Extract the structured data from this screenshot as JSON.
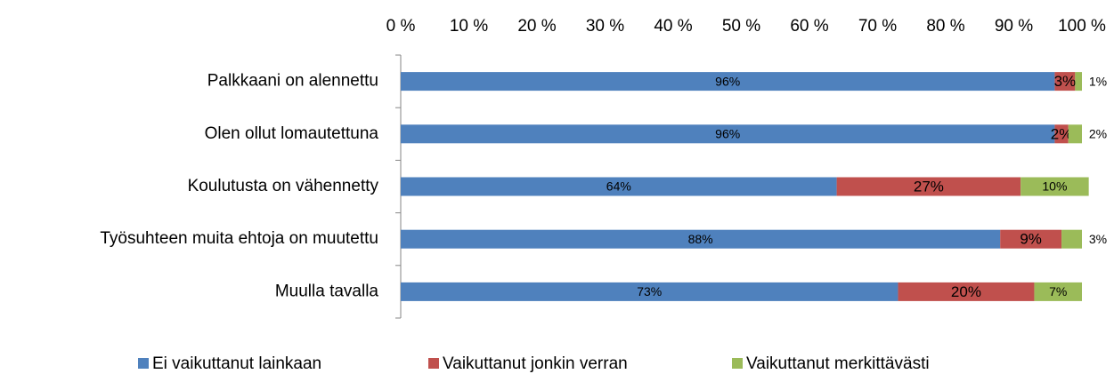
{
  "chart_data": {
    "type": "stacked_bar_horizontal",
    "categories": [
      "Palkkaani on alennettu",
      "Olen ollut lomautettuna",
      "Koulutusta on vähennetty",
      "Työsuhteen muita ehtoja on muutettu",
      "Muulla tavalla"
    ],
    "series": [
      {
        "name": "Ei vaikuttanut lainkaan",
        "color": "#4f81bd",
        "values": [
          96,
          96,
          64,
          88,
          73
        ],
        "value_labels": [
          "96%",
          "96%",
          "64%",
          "88%",
          "73%"
        ]
      },
      {
        "name": "Vaikuttanut jonkin verran",
        "color": "#c0504d",
        "values": [
          3,
          2,
          27,
          9,
          20
        ],
        "value_labels": [
          "3%",
          "2%",
          "27%",
          "9%",
          "20%"
        ]
      },
      {
        "name": "Vaikuttanut merkittävästi",
        "color": "#9bbb59",
        "values": [
          1,
          2,
          10,
          3,
          7
        ],
        "value_labels": [
          "1%",
          "2%",
          "10%",
          "3%",
          "7%"
        ]
      }
    ],
    "xlim": [
      0,
      100
    ],
    "xticks": [
      {
        "value": 0,
        "label": "0 %"
      },
      {
        "value": 10,
        "label": "10 %"
      },
      {
        "value": 20,
        "label": "20 %"
      },
      {
        "value": 30,
        "label": "30 %"
      },
      {
        "value": 40,
        "label": "40 %"
      },
      {
        "value": 50,
        "label": "50 %"
      },
      {
        "value": 60,
        "label": "60 %"
      },
      {
        "value": 70,
        "label": "70 %"
      },
      {
        "value": 80,
        "label": "80 %"
      },
      {
        "value": 90,
        "label": "90 %"
      },
      {
        "value": 100,
        "label": "100 %"
      }
    ],
    "legend": "bottom"
  }
}
